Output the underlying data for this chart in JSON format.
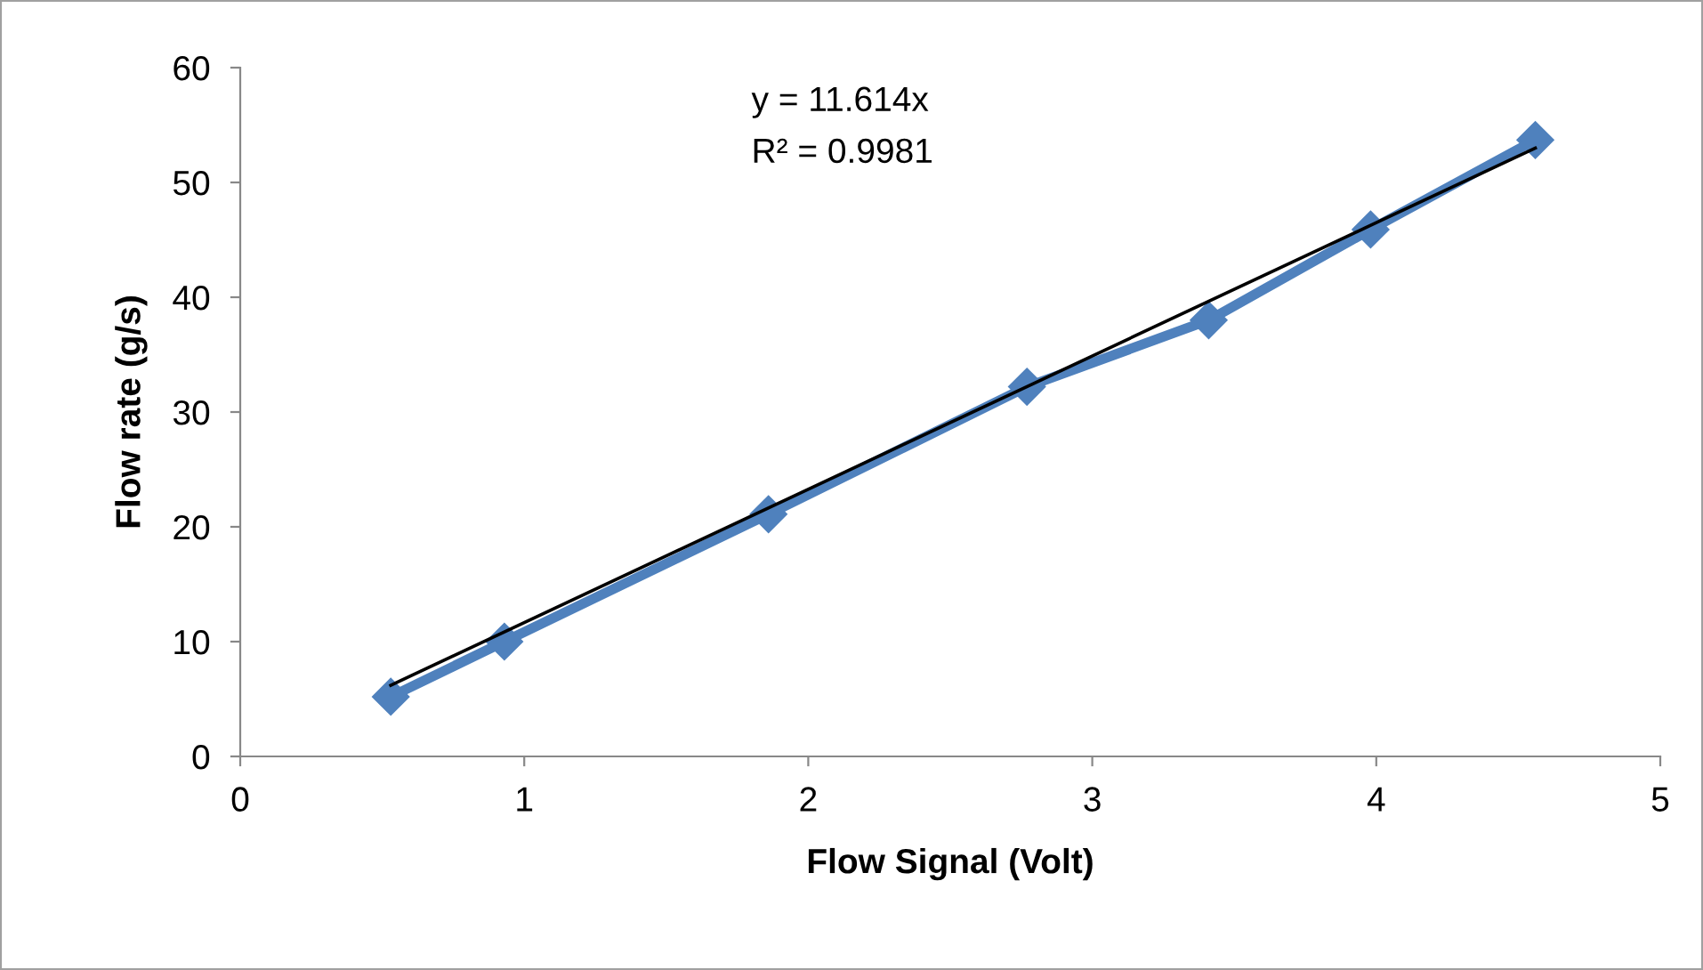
{
  "chart_data": {
    "type": "line",
    "xlabel": "Flow Signal (Volt)",
    "ylabel": "Flow rate (g/s)",
    "xlim": [
      0,
      5
    ],
    "xticks": [
      0,
      1,
      2,
      3,
      4,
      5
    ],
    "ylim": [
      0,
      60
    ],
    "yticks": [
      0,
      10,
      20,
      30,
      40,
      50,
      60
    ],
    "grid": false,
    "legend": false,
    "series": [
      {
        "color": "#4f81bd",
        "marker": "diamond",
        "x": [
          0.53,
          0.93,
          1.86,
          2.77,
          3.41,
          3.98,
          4.56
        ],
        "values": [
          5.2,
          10.0,
          21.1,
          32.2,
          38.0,
          45.9,
          53.7
        ]
      },
      {
        "color": "#000000",
        "marker": "none",
        "x": [
          0.53,
          4.56
        ],
        "values": [
          6.2,
          53.0
        ]
      }
    ],
    "annotations": [
      "y = 11.614x",
      "R² = 0.9981"
    ]
  }
}
